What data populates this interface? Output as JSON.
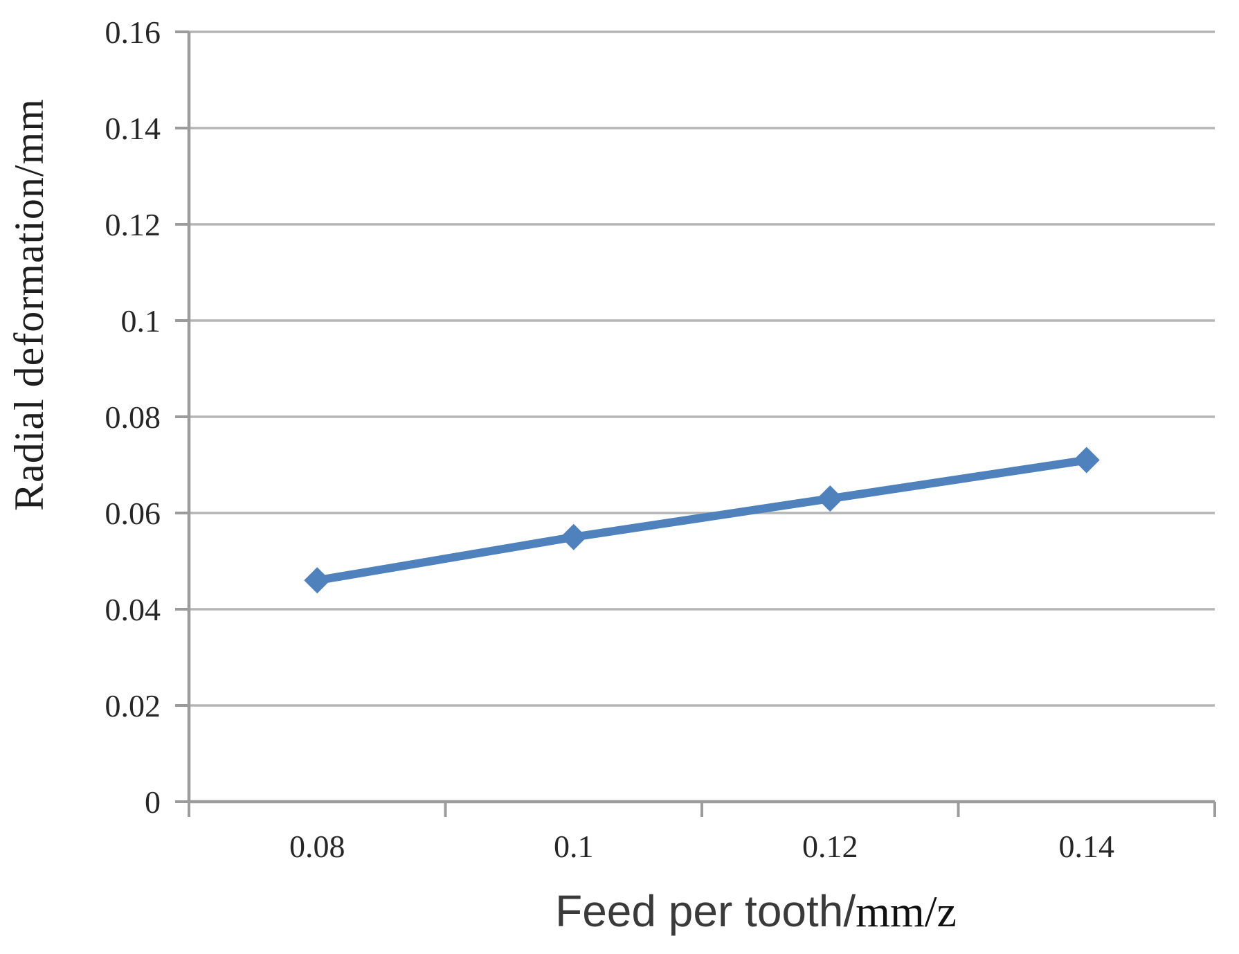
{
  "chart_data": {
    "type": "line",
    "categories": [
      "0.08",
      "0.1",
      "0.12",
      "0.14"
    ],
    "series": [
      {
        "values": [
          0.046,
          0.055,
          0.063,
          0.071
        ]
      }
    ],
    "xlabel": "Feed per tooth/mm/z",
    "xlabel_main": "Feed per tooth/",
    "xlabel_unit": "mm/z",
    "ylabel": "Radial deformation/mm",
    "ylim": [
      0,
      0.16
    ],
    "y_ticks": [
      {
        "value": 0,
        "label": "0"
      },
      {
        "value": 0.02,
        "label": "0.02"
      },
      {
        "value": 0.04,
        "label": "0.04"
      },
      {
        "value": 0.06,
        "label": "0.06"
      },
      {
        "value": 0.08,
        "label": "0.08"
      },
      {
        "value": 0.1,
        "label": "0.1"
      },
      {
        "value": 0.12,
        "label": "0.12"
      },
      {
        "value": 0.14,
        "label": "0.14"
      },
      {
        "value": 0.16,
        "label": "0.16"
      }
    ],
    "grid": "horizontal",
    "legend": "none",
    "marker": "diamond",
    "colors": {
      "series": "#4f81bd",
      "gridline": "#b5b5b5",
      "axis_line": "#9c9c9c",
      "tick_mark": "#9c9c9c",
      "tick_label": "#262626",
      "y_title": "#1e1e1e",
      "x_title_main": "#3a3a3a",
      "x_title_unit": "#101010"
    }
  }
}
